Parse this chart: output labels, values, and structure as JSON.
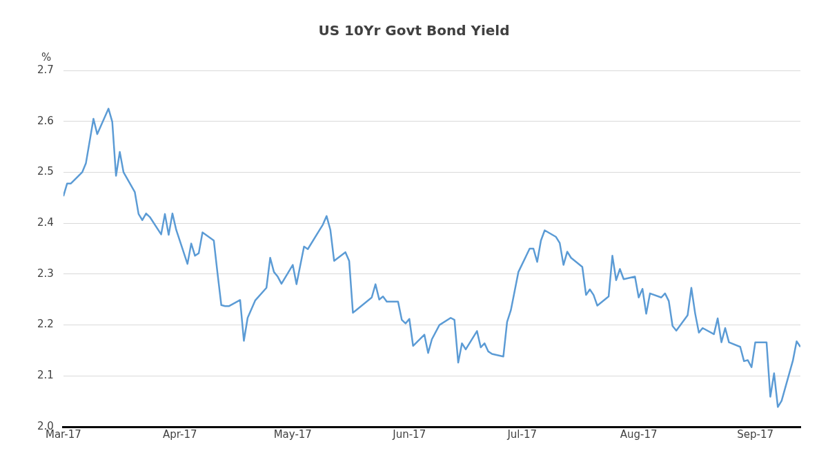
{
  "chart_data": {
    "type": "line",
    "title": "US 10Yr Govt Bond Yield",
    "ylabel": "%",
    "x": [
      "2017-03-01",
      "2017-03-02",
      "2017-03-03",
      "2017-03-06",
      "2017-03-07",
      "2017-03-09",
      "2017-03-10",
      "2017-03-13",
      "2017-03-14",
      "2017-03-15",
      "2017-03-16",
      "2017-03-17",
      "2017-03-20",
      "2017-03-21",
      "2017-03-22",
      "2017-03-23",
      "2017-03-24",
      "2017-03-27",
      "2017-03-28",
      "2017-03-29",
      "2017-03-30",
      "2017-03-31",
      "2017-04-03",
      "2017-04-04",
      "2017-04-05",
      "2017-04-06",
      "2017-04-07",
      "2017-04-10",
      "2017-04-11",
      "2017-04-12",
      "2017-04-13",
      "2017-04-14",
      "2017-04-17",
      "2017-04-18",
      "2017-04-19",
      "2017-04-21",
      "2017-04-24",
      "2017-04-25",
      "2017-04-26",
      "2017-04-27",
      "2017-04-28",
      "2017-05-01",
      "2017-05-02",
      "2017-05-04",
      "2017-05-05",
      "2017-05-08",
      "2017-05-09",
      "2017-05-10",
      "2017-05-11",
      "2017-05-12",
      "2017-05-15",
      "2017-05-16",
      "2017-05-17",
      "2017-05-18",
      "2017-05-22",
      "2017-05-23",
      "2017-05-24",
      "2017-05-25",
      "2017-05-26",
      "2017-05-29",
      "2017-05-30",
      "2017-05-31",
      "2017-06-01",
      "2017-06-02",
      "2017-06-05",
      "2017-06-06",
      "2017-06-07",
      "2017-06-09",
      "2017-06-12",
      "2017-06-13",
      "2017-06-14",
      "2017-06-15",
      "2017-06-16",
      "2017-06-19",
      "2017-06-20",
      "2017-06-21",
      "2017-06-22",
      "2017-06-23",
      "2017-06-26",
      "2017-06-27",
      "2017-06-28",
      "2017-06-30",
      "2017-07-03",
      "2017-07-04",
      "2017-07-05",
      "2017-07-06",
      "2017-07-07",
      "2017-07-10",
      "2017-07-11",
      "2017-07-12",
      "2017-07-13",
      "2017-07-14",
      "2017-07-17",
      "2017-07-18",
      "2017-07-19",
      "2017-07-20",
      "2017-07-21",
      "2017-07-24",
      "2017-07-25",
      "2017-07-26",
      "2017-07-27",
      "2017-07-28",
      "2017-07-31",
      "2017-08-01",
      "2017-08-02",
      "2017-08-03",
      "2017-08-04",
      "2017-08-07",
      "2017-08-08",
      "2017-08-09",
      "2017-08-10",
      "2017-08-11",
      "2017-08-14",
      "2017-08-15",
      "2017-08-16",
      "2017-08-17",
      "2017-08-18",
      "2017-08-21",
      "2017-08-22",
      "2017-08-23",
      "2017-08-24",
      "2017-08-25",
      "2017-08-28",
      "2017-08-29",
      "2017-08-30",
      "2017-08-31",
      "2017-09-01",
      "2017-09-04",
      "2017-09-05",
      "2017-09-06",
      "2017-09-07",
      "2017-09-08",
      "2017-09-11",
      "2017-09-12",
      "2017-09-13"
    ],
    "values": [
      2.453,
      2.478,
      2.478,
      2.5,
      2.518,
      2.605,
      2.575,
      2.625,
      2.599,
      2.493,
      2.54,
      2.5,
      2.461,
      2.418,
      2.406,
      2.419,
      2.412,
      2.378,
      2.418,
      2.377,
      2.419,
      2.387,
      2.32,
      2.36,
      2.336,
      2.341,
      2.382,
      2.366,
      2.301,
      2.239,
      2.237,
      2.237,
      2.249,
      2.169,
      2.214,
      2.248,
      2.273,
      2.332,
      2.304,
      2.295,
      2.281,
      2.318,
      2.28,
      2.354,
      2.349,
      2.385,
      2.397,
      2.414,
      2.387,
      2.326,
      2.343,
      2.326,
      2.224,
      2.23,
      2.254,
      2.28,
      2.25,
      2.256,
      2.246,
      2.246,
      2.21,
      2.203,
      2.212,
      2.159,
      2.181,
      2.145,
      2.172,
      2.2,
      2.214,
      2.21,
      2.126,
      2.164,
      2.152,
      2.188,
      2.156,
      2.164,
      2.148,
      2.143,
      2.138,
      2.206,
      2.229,
      2.304,
      2.35,
      2.35,
      2.324,
      2.366,
      2.386,
      2.373,
      2.361,
      2.318,
      2.344,
      2.332,
      2.314,
      2.259,
      2.27,
      2.259,
      2.238,
      2.256,
      2.336,
      2.288,
      2.31,
      2.29,
      2.295,
      2.254,
      2.271,
      2.222,
      2.262,
      2.254,
      2.262,
      2.247,
      2.198,
      2.189,
      2.219,
      2.273,
      2.223,
      2.185,
      2.194,
      2.182,
      2.213,
      2.166,
      2.194,
      2.166,
      2.157,
      2.129,
      2.131,
      2.117,
      2.166,
      2.166,
      2.059,
      2.105,
      2.039,
      2.051,
      2.13,
      2.168,
      2.157
    ],
    "color": "#5b9bd5",
    "xlim": [
      "2017-03-01",
      "2017-09-13"
    ],
    "xticks": [
      {
        "value": "2017-03-01",
        "label": "Mar-17"
      },
      {
        "value": "2017-04-01",
        "label": "Apr-17"
      },
      {
        "value": "2017-05-01",
        "label": "May-17"
      },
      {
        "value": "2017-06-01",
        "label": "Jun-17"
      },
      {
        "value": "2017-07-01",
        "label": "Jul-17"
      },
      {
        "value": "2017-08-01",
        "label": "Aug-17"
      },
      {
        "value": "2017-09-01",
        "label": "Sep-17"
      }
    ],
    "ylim": [
      2.0,
      2.7
    ],
    "yticks": [
      {
        "value": 2.0,
        "label": "2.0"
      },
      {
        "value": 2.1,
        "label": "2.1"
      },
      {
        "value": 2.2,
        "label": "2.2"
      },
      {
        "value": 2.3,
        "label": "2.3"
      },
      {
        "value": 2.4,
        "label": "2.4"
      },
      {
        "value": 2.5,
        "label": "2.5"
      },
      {
        "value": 2.6,
        "label": "2.6"
      },
      {
        "value": 2.7,
        "label": "2.7"
      }
    ],
    "grid": "y",
    "legend": false,
    "marker": "none",
    "line_style": "solid"
  }
}
